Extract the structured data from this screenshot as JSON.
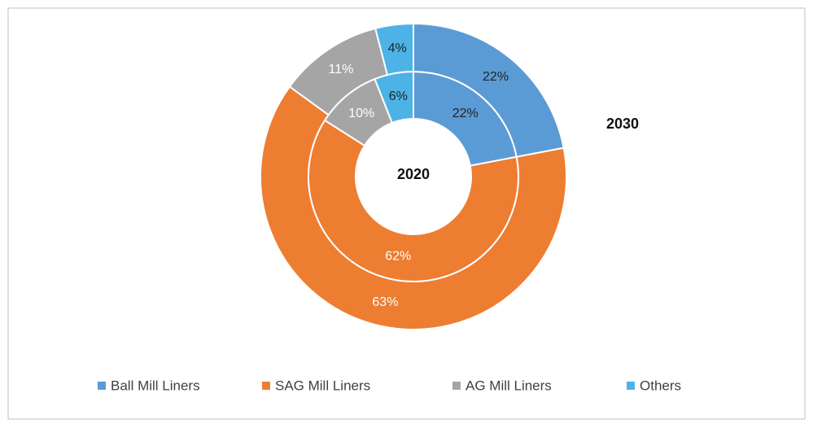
{
  "chart_data": {
    "type": "donut",
    "categories": [
      "Ball Mill Liners",
      "SAG Mill Liners",
      "AG Mill Liners",
      "Others"
    ],
    "colors": [
      "#5b9bd5",
      "#ed7d31",
      "#a5a5a5",
      "#4db3e6"
    ],
    "series": [
      {
        "name": "2020",
        "values": [
          22,
          62,
          10,
          6
        ],
        "value_labels": [
          "22%",
          "62%",
          "10%",
          "6%"
        ]
      },
      {
        "name": "2030",
        "values": [
          22,
          63,
          11,
          4
        ],
        "value_labels": [
          "22%",
          "63%",
          "11%",
          "4%"
        ]
      }
    ],
    "legend": "bottom"
  }
}
